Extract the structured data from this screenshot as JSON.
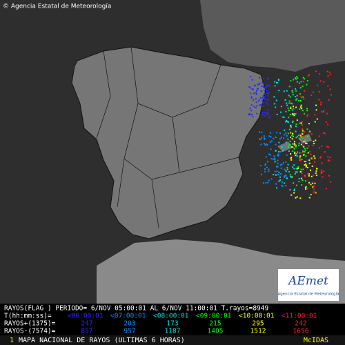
{
  "header": {
    "copyright": "© Agencia Estatal de Meteorología"
  },
  "logo": {
    "name": "AEmet",
    "subtitle": "Agencia Estatal de Meteorología"
  },
  "legend": {
    "period_line": "RAYOS(FLAG ) PERIODO= 6/NOV 05:00:01 AL  6/NOV 11:00:01  T.rayos=8949",
    "time_label": "T(hh:mm:ss)=",
    "intervals": [
      {
        "label": "<06:00:01",
        "color": "#2a2aff"
      },
      {
        "label": "<07:00:01",
        "color": "#0090ff"
      },
      {
        "label": "<08:00:01",
        "color": "#00e0e0"
      },
      {
        "label": "<09:00:01",
        "color": "#00ff00"
      },
      {
        "label": "<10:00:01",
        "color": "#ffff00"
      },
      {
        "label": "<11:00:01",
        "color": "#ff2020"
      }
    ],
    "positive_label": "RAYOS+(1375)=",
    "positive": [
      247,
      203,
      173,
      215,
      295,
      242
    ],
    "negative_label": "RAYOS-(7574)=",
    "negative": [
      857,
      957,
      1187,
      1405,
      1512,
      1656
    ]
  },
  "footer": {
    "panel": "1",
    "title": "MAPA NACIONAL DE RAYOS (ULTIMAS 6 HORAS)",
    "source": "McIDAS"
  }
}
